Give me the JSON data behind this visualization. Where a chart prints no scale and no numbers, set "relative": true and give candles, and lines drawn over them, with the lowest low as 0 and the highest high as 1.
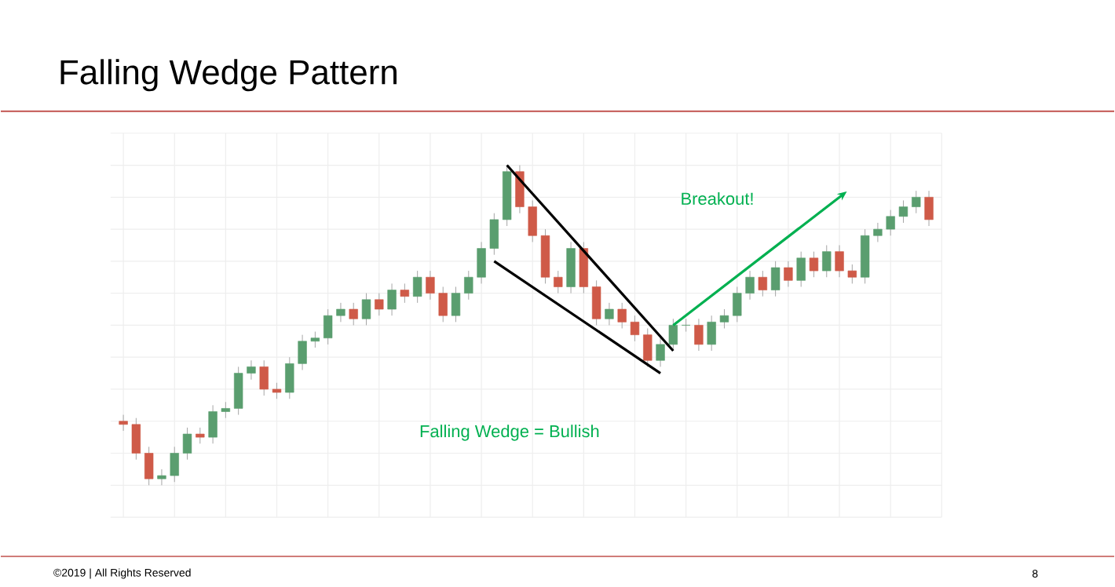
{
  "chart_data": {
    "type": "candlestick",
    "title": "Falling Wedge Pattern",
    "relative": true,
    "grid": true,
    "tick_labels": false,
    "categories": [
      null,
      null,
      null,
      null,
      null,
      null,
      null,
      null,
      null,
      null,
      null,
      null,
      null,
      null,
      null,
      null,
      null,
      null,
      null,
      null,
      null,
      null,
      null,
      null,
      null,
      null,
      null,
      null,
      null,
      null,
      null,
      null,
      null,
      null,
      null,
      null,
      null,
      null,
      null,
      null,
      null,
      null,
      null,
      null,
      null,
      null,
      null,
      null,
      null,
      null,
      null,
      null,
      null,
      null,
      null,
      null,
      null,
      null,
      null,
      null,
      null,
      null,
      null,
      null
    ],
    "ohlc": [
      [
        0.2,
        0.22,
        0.17,
        0.19
      ],
      [
        0.19,
        0.21,
        0.08,
        0.1
      ],
      [
        0.1,
        0.12,
        0.0,
        0.02
      ],
      [
        0.02,
        0.05,
        0.0,
        0.03
      ],
      [
        0.03,
        0.12,
        0.01,
        0.1
      ],
      [
        0.1,
        0.18,
        0.08,
        0.16
      ],
      [
        0.16,
        0.18,
        0.13,
        0.15
      ],
      [
        0.15,
        0.25,
        0.13,
        0.23
      ],
      [
        0.23,
        0.26,
        0.21,
        0.24
      ],
      [
        0.24,
        0.37,
        0.22,
        0.35
      ],
      [
        0.35,
        0.39,
        0.33,
        0.37
      ],
      [
        0.37,
        0.39,
        0.28,
        0.3
      ],
      [
        0.3,
        0.32,
        0.27,
        0.29
      ],
      [
        0.29,
        0.4,
        0.27,
        0.38
      ],
      [
        0.38,
        0.47,
        0.36,
        0.45
      ],
      [
        0.45,
        0.48,
        0.43,
        0.46
      ],
      [
        0.46,
        0.55,
        0.44,
        0.53
      ],
      [
        0.53,
        0.57,
        0.51,
        0.55
      ],
      [
        0.55,
        0.57,
        0.5,
        0.52
      ],
      [
        0.52,
        0.6,
        0.5,
        0.58
      ],
      [
        0.58,
        0.6,
        0.53,
        0.55
      ],
      [
        0.55,
        0.63,
        0.53,
        0.61
      ],
      [
        0.61,
        0.63,
        0.57,
        0.59
      ],
      [
        0.59,
        0.67,
        0.57,
        0.65
      ],
      [
        0.65,
        0.67,
        0.58,
        0.6
      ],
      [
        0.6,
        0.62,
        0.51,
        0.53
      ],
      [
        0.53,
        0.62,
        0.51,
        0.6
      ],
      [
        0.6,
        0.67,
        0.58,
        0.65
      ],
      [
        0.65,
        0.76,
        0.63,
        0.74
      ],
      [
        0.74,
        0.85,
        0.72,
        0.83
      ],
      [
        0.83,
        1.0,
        0.81,
        0.98
      ],
      [
        0.98,
        1.0,
        0.85,
        0.87
      ],
      [
        0.87,
        0.89,
        0.76,
        0.78
      ],
      [
        0.78,
        0.8,
        0.63,
        0.65
      ],
      [
        0.65,
        0.67,
        0.6,
        0.62
      ],
      [
        0.62,
        0.76,
        0.6,
        0.74
      ],
      [
        0.74,
        0.76,
        0.6,
        0.62
      ],
      [
        0.62,
        0.64,
        0.5,
        0.52
      ],
      [
        0.52,
        0.57,
        0.5,
        0.55
      ],
      [
        0.55,
        0.57,
        0.49,
        0.51
      ],
      [
        0.51,
        0.53,
        0.45,
        0.47
      ],
      [
        0.47,
        0.49,
        0.37,
        0.39
      ],
      [
        0.39,
        0.46,
        0.37,
        0.44
      ],
      [
        0.44,
        0.52,
        0.42,
        0.5
      ],
      [
        0.5,
        0.52,
        0.48,
        0.5
      ],
      [
        0.5,
        0.52,
        0.42,
        0.44
      ],
      [
        0.44,
        0.53,
        0.42,
        0.51
      ],
      [
        0.51,
        0.55,
        0.49,
        0.53
      ],
      [
        0.53,
        0.62,
        0.51,
        0.6
      ],
      [
        0.6,
        0.67,
        0.58,
        0.65
      ],
      [
        0.65,
        0.67,
        0.59,
        0.61
      ],
      [
        0.61,
        0.7,
        0.59,
        0.68
      ],
      [
        0.68,
        0.7,
        0.62,
        0.64
      ],
      [
        0.64,
        0.73,
        0.62,
        0.71
      ],
      [
        0.71,
        0.73,
        0.65,
        0.67
      ],
      [
        0.67,
        0.75,
        0.65,
        0.73
      ],
      [
        0.73,
        0.75,
        0.65,
        0.67
      ],
      [
        0.67,
        0.69,
        0.63,
        0.65
      ],
      [
        0.65,
        0.8,
        0.63,
        0.78
      ],
      [
        0.78,
        0.82,
        0.76,
        0.8
      ],
      [
        0.8,
        0.86,
        0.78,
        0.84
      ],
      [
        0.84,
        0.89,
        0.82,
        0.87
      ],
      [
        0.87,
        0.92,
        0.85,
        0.9
      ],
      [
        0.9,
        0.92,
        0.81,
        0.83
      ]
    ],
    "series": [
      {
        "type": "line",
        "color": "#000000",
        "values": [
          null,
          null,
          null,
          null,
          null,
          null,
          null,
          null,
          null,
          null,
          null,
          null,
          null,
          null,
          null,
          null,
          null,
          null,
          null,
          null,
          null,
          null,
          null,
          null,
          null,
          null,
          null,
          null,
          null,
          null,
          1.0,
          null,
          null,
          null,
          null,
          null,
          null,
          null,
          null,
          null,
          null,
          null,
          null,
          0.42,
          null,
          null,
          null,
          null,
          null,
          null,
          null,
          null,
          null,
          null,
          null,
          null,
          null,
          null,
          null,
          null,
          null,
          null,
          null,
          null
        ]
      },
      {
        "type": "line",
        "color": "#000000",
        "values": [
          null,
          null,
          null,
          null,
          null,
          null,
          null,
          null,
          null,
          null,
          null,
          null,
          null,
          null,
          null,
          null,
          null,
          null,
          null,
          null,
          null,
          null,
          null,
          null,
          null,
          null,
          null,
          null,
          null,
          0.7,
          null,
          null,
          null,
          null,
          null,
          null,
          null,
          null,
          null,
          null,
          null,
          null,
          0.35,
          null,
          null,
          null,
          null,
          null,
          null,
          null,
          null,
          null,
          null,
          null,
          null,
          null,
          null,
          null,
          null,
          null,
          null,
          null,
          null,
          null
        ]
      },
      {
        "type": "line",
        "color": "#00b050",
        "values": [
          null,
          null,
          null,
          null,
          null,
          null,
          null,
          null,
          null,
          null,
          null,
          null,
          null,
          null,
          null,
          null,
          null,
          null,
          null,
          null,
          null,
          null,
          null,
          null,
          null,
          null,
          null,
          null,
          null,
          null,
          null,
          null,
          null,
          null,
          null,
          null,
          null,
          null,
          null,
          null,
          null,
          null,
          null,
          0.5,
          null,
          null,
          null,
          null,
          null,
          null,
          null,
          null,
          null,
          null,
          null,
          null,
          0.9,
          null,
          null,
          null,
          null,
          null,
          null,
          null
        ]
      }
    ],
    "annotations": [
      "Breakout!",
      "Falling Wedge = Bullish",
      "©2019 | All Rights Reserved",
      "8"
    ]
  }
}
